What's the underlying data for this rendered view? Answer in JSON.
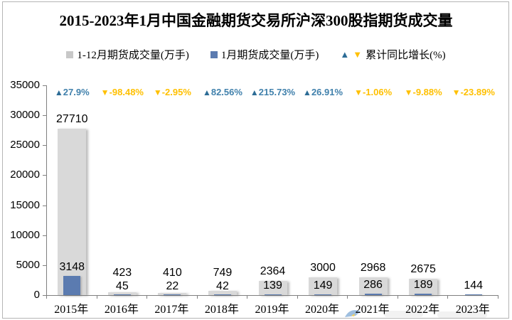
{
  "title": "2015-2023年1月中国金融期货交易所沪深300股指期货成交量",
  "legend": {
    "items": [
      {
        "label": "1-12月期货成交量(万手)",
        "swatch": "#C8C8C8",
        "type": "square"
      },
      {
        "label": "1月期货成交量(万手)",
        "swatch": "#5B7BB0",
        "type": "square"
      },
      {
        "label": "累计同比增长(%)",
        "type": "triangles"
      }
    ]
  },
  "colors": {
    "annual_bar": "#D9D9D9",
    "january_bar": "#5B7BB0",
    "growth_up_triangle": "#2C6C96",
    "growth_up_text": "#4181AC",
    "growth_down": "#FFC000",
    "axis": "#808080"
  },
  "chart_data": {
    "type": "bar",
    "title": "2015-2023年1月中国金融期货交易所沪深300股指期货成交量",
    "categories": [
      "2015年",
      "2016年",
      "2017年",
      "2018年",
      "2019年",
      "2020年",
      "2021年",
      "2022年",
      "2023年"
    ],
    "series": [
      {
        "name": "1-12月期货成交量(万手)",
        "color": "#D9D9D9",
        "values": [
          27710,
          423,
          410,
          749,
          2364,
          3000,
          2968,
          2675,
          null
        ]
      },
      {
        "name": "1月期货成交量(万手)",
        "color": "#5B7BB0",
        "values": [
          3148,
          45,
          22,
          42,
          139,
          149,
          286,
          189,
          144
        ]
      }
    ],
    "growth_series": {
      "name": "累计同比增长(%)",
      "values": [
        27.9,
        -98.48,
        -2.95,
        82.56,
        215.73,
        26.91,
        -1.06,
        -9.88,
        -23.89
      ]
    },
    "xlabel": "",
    "ylabel": "",
    "ylim": [
      0,
      35000
    ],
    "yticks": [
      0,
      5000,
      10000,
      15000,
      20000,
      25000,
      30000,
      35000
    ],
    "grid": false,
    "legend_position": "top"
  }
}
